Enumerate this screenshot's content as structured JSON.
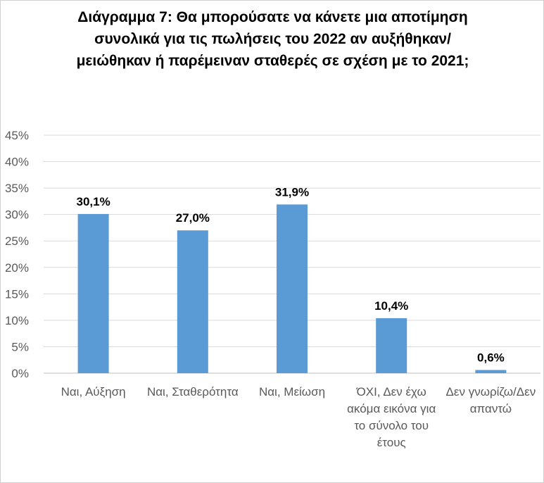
{
  "chart_data": {
    "type": "bar",
    "title": "Διάγραμμα 7: Θα μπορούσατε να κάνετε μια αποτίμηση συνολικά για τις πωλήσεις του 2022 αν αυξήθηκαν/ μειώθηκαν ή παρέμειναν σταθερές σε σχέση με το 2021;",
    "categories": [
      "Ναι, Αύξηση",
      "Ναι, Σταθερότητα",
      "Ναι, Μείωση",
      "ΌΧΙ, Δεν έχω ακόμα εικόνα για το σύνολο του έτους",
      "Δεν γνωρίζω/Δεν απαντώ"
    ],
    "values": [
      30.1,
      27.0,
      31.9,
      10.4,
      0.6
    ],
    "data_labels": [
      "30,1%",
      "27,0%",
      "31,9%",
      "10,4%",
      "0,6%"
    ],
    "yticks": [
      "0%",
      "5%",
      "10%",
      "15%",
      "20%",
      "25%",
      "30%",
      "35%",
      "40%",
      "45%"
    ],
    "ylim": [
      0,
      45
    ],
    "grid": true,
    "bar_color": "#5b9bd5"
  }
}
